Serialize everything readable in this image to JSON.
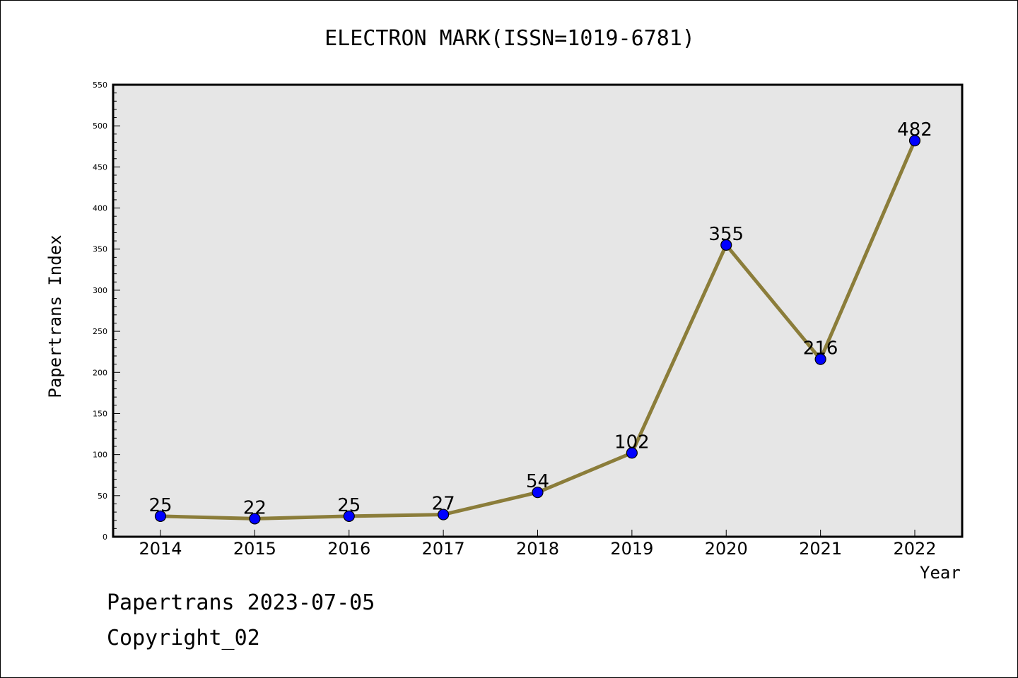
{
  "chart_data": {
    "type": "line",
    "title": "ELECTRON MARK(ISSN=1019-6781)",
    "xlabel": "Year",
    "ylabel": "Papertrans Index",
    "categories": [
      "2014",
      "2015",
      "2016",
      "2017",
      "2018",
      "2019",
      "2020",
      "2021",
      "2022"
    ],
    "series": [
      {
        "values": [
          25,
          22,
          25,
          27,
          54,
          102,
          355,
          216,
          482
        ]
      }
    ],
    "data_labels": [
      "25",
      "22",
      "25",
      "27",
      "54",
      "102",
      "355",
      "216",
      "482"
    ],
    "ylim": [
      0,
      550
    ],
    "yticks": [
      "0",
      "50",
      "100",
      "150",
      "200",
      "250",
      "300",
      "350",
      "400",
      "450",
      "500",
      "550"
    ],
    "grid": false,
    "colors": {
      "line": "#8B7D3A",
      "marker": "#0000FF",
      "plot_bg": "#E6E6E6"
    }
  },
  "footer": {
    "line1": "Papertrans 2023-07-05",
    "line2": "Copyright_02"
  }
}
